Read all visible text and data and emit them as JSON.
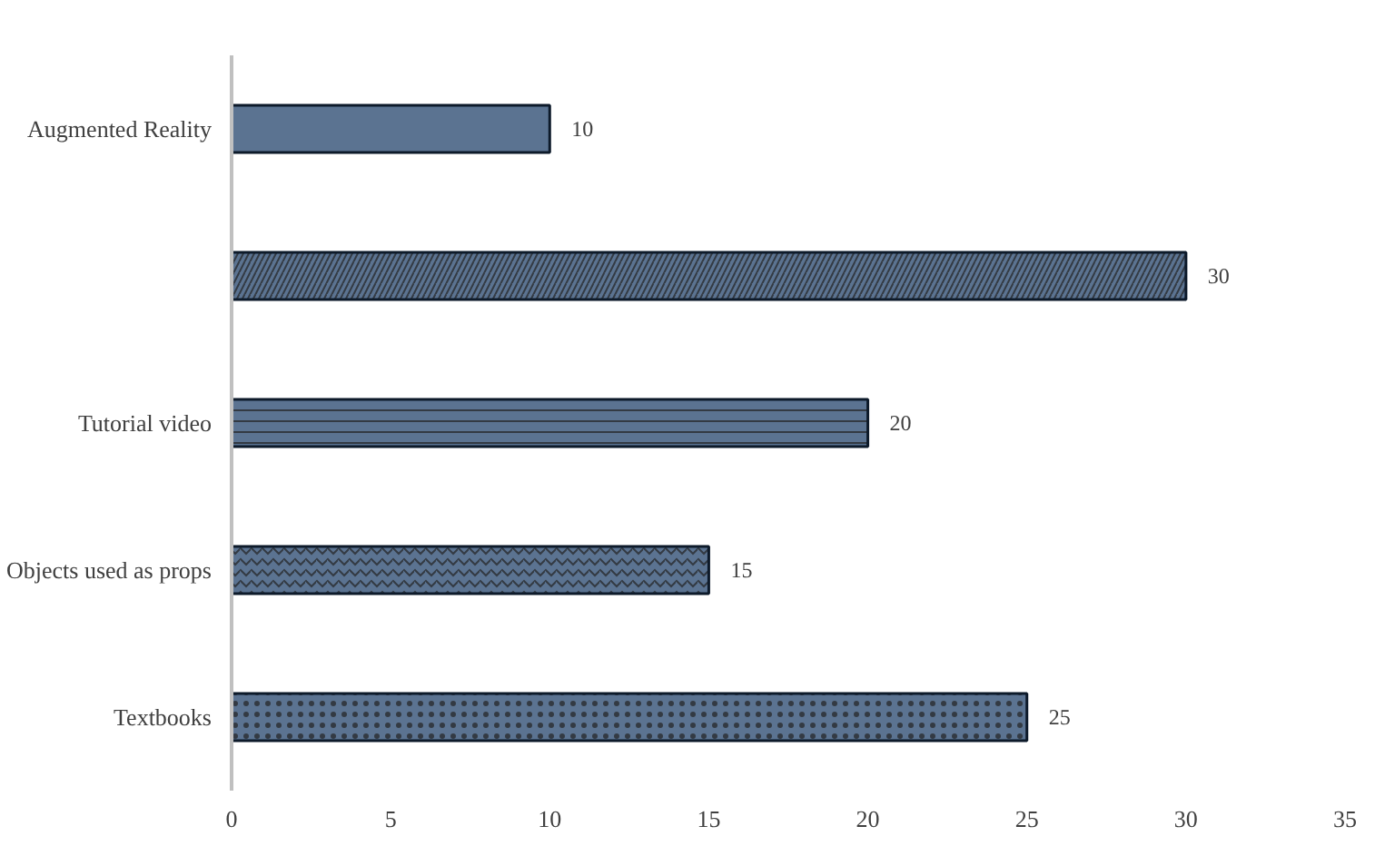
{
  "chart_data": {
    "type": "bar",
    "orientation": "horizontal",
    "categories": [
      "Augmented Reality",
      null,
      "Tutorial video",
      "Objects used as props",
      "Textbooks"
    ],
    "values": [
      10,
      30,
      20,
      15,
      25
    ],
    "color": "#5b7391",
    "xlim": [
      0,
      35
    ],
    "xticks": [
      0,
      5,
      10,
      15,
      20,
      25,
      30,
      35
    ],
    "grid": false,
    "data_labels": true
  }
}
